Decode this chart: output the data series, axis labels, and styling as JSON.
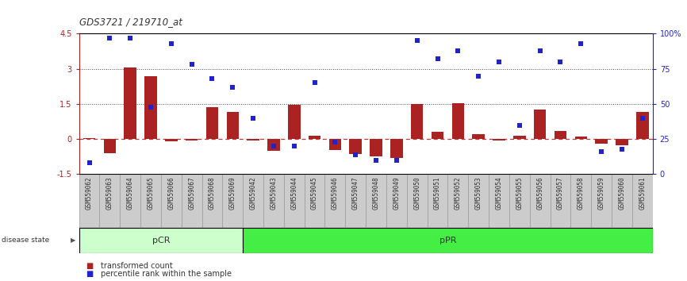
{
  "title": "GDS3721 / 219710_at",
  "samples": [
    "GSM559062",
    "GSM559063",
    "GSM559064",
    "GSM559065",
    "GSM559066",
    "GSM559067",
    "GSM559068",
    "GSM559069",
    "GSM559042",
    "GSM559043",
    "GSM559044",
    "GSM559045",
    "GSM559046",
    "GSM559047",
    "GSM559048",
    "GSM559049",
    "GSM559050",
    "GSM559051",
    "GSM559052",
    "GSM559053",
    "GSM559054",
    "GSM559055",
    "GSM559056",
    "GSM559057",
    "GSM559058",
    "GSM559059",
    "GSM559060",
    "GSM559061"
  ],
  "transformed_count": [
    0.05,
    -0.6,
    3.05,
    2.7,
    -0.1,
    -0.05,
    1.35,
    1.15,
    -0.05,
    -0.5,
    1.45,
    0.15,
    -0.45,
    -0.65,
    -0.75,
    -0.8,
    1.5,
    0.3,
    1.55,
    0.2,
    -0.05,
    0.15,
    1.25,
    0.35,
    0.1,
    -0.2,
    -0.25,
    1.15
  ],
  "percentile_rank": [
    8,
    97,
    97,
    48,
    93,
    78,
    68,
    62,
    40,
    20,
    20,
    65,
    23,
    14,
    10,
    10,
    95,
    82,
    88,
    70,
    80,
    35,
    88,
    80,
    93,
    16,
    18,
    40
  ],
  "group": [
    "pCR",
    "pCR",
    "pCR",
    "pCR",
    "pCR",
    "pCR",
    "pCR",
    "pCR",
    "pPR",
    "pPR",
    "pPR",
    "pPR",
    "pPR",
    "pPR",
    "pPR",
    "pPR",
    "pPR",
    "pPR",
    "pPR",
    "pPR",
    "pPR",
    "pPR",
    "pPR",
    "pPR",
    "pPR",
    "pPR",
    "pPR",
    "pPR"
  ],
  "bar_color": "#aa2222",
  "scatter_color": "#2222cc",
  "zero_line_color": "#cc3333",
  "dotted_line_color": "#444444",
  "pcr_color": "#ccffcc",
  "ppr_color": "#44ee44",
  "xtick_bg": "#cccccc",
  "bar_ylim": [
    -1.5,
    4.5
  ],
  "scatter_ylim": [
    0,
    100
  ],
  "hlines": [
    3.0,
    1.5
  ],
  "bg_color": "#ffffff"
}
